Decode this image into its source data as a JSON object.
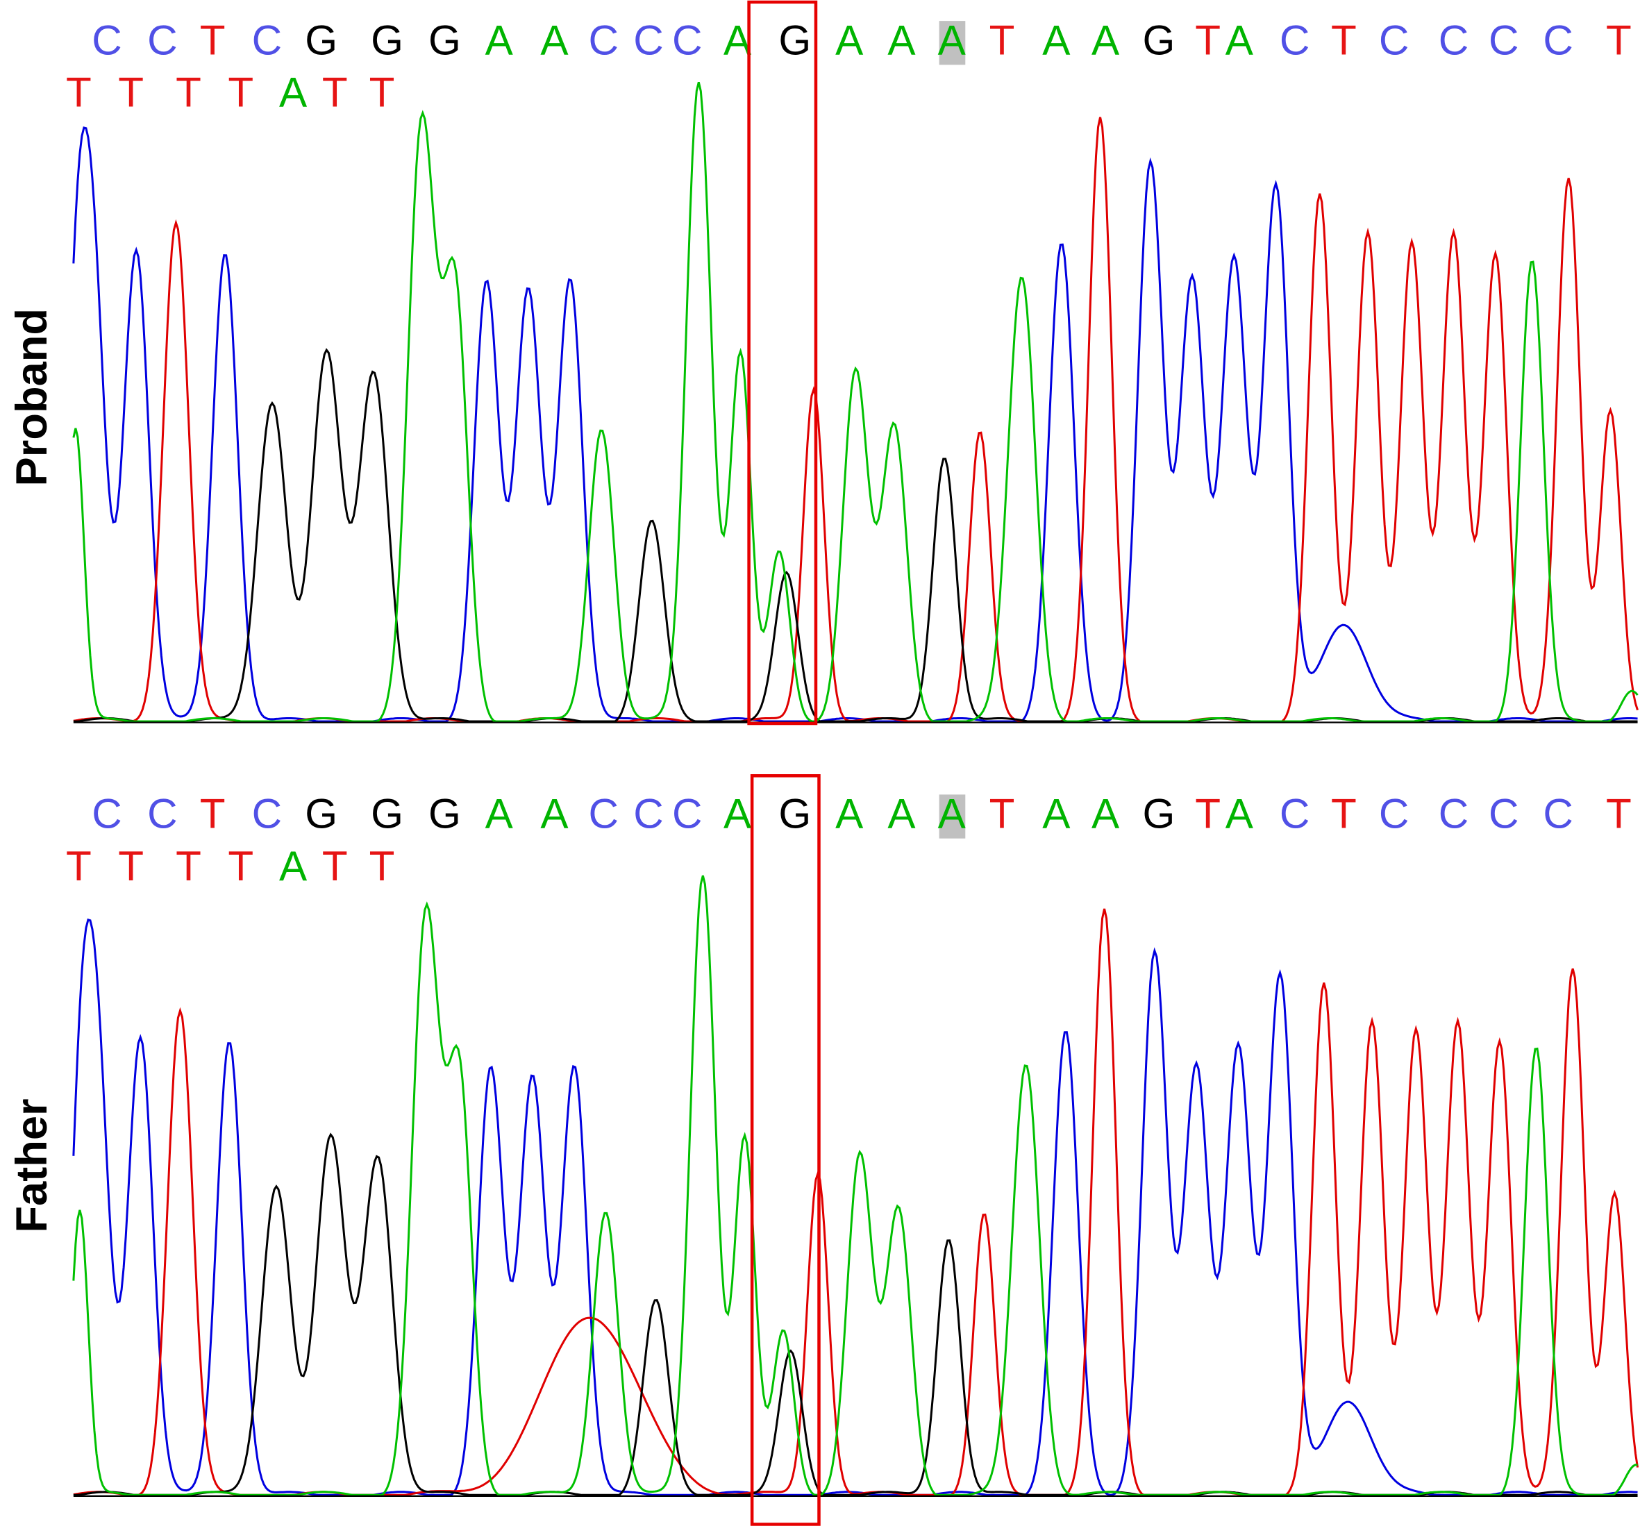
{
  "panels": [
    {
      "label": "Proband",
      "lines": [
        [
          "C",
          "C",
          "T",
          "C",
          "G",
          "G",
          "G",
          "A",
          "A",
          "C",
          "C",
          "C",
          "A",
          "G",
          "A",
          "A",
          "A",
          "T",
          "A",
          "A",
          "G",
          "T",
          "A",
          "C",
          "T",
          "C",
          "C",
          "C",
          "C",
          "T"
        ],
        [
          "T",
          "T",
          "T",
          "T",
          "A",
          "T",
          "T"
        ]
      ]
    },
    {
      "label": "Father",
      "lines": [
        [
          "C",
          "C",
          "T",
          "C",
          "G",
          "G",
          "G",
          "A",
          "A",
          "C",
          "C",
          "C",
          "A",
          "G",
          "A",
          "A",
          "A",
          "T",
          "A",
          "A",
          "G",
          "T",
          "A",
          "C",
          "T",
          "C",
          "C",
          "C",
          "C",
          "T"
        ],
        [
          "T",
          "T",
          "T",
          "T",
          "A",
          "T",
          "T"
        ]
      ]
    }
  ]
}
